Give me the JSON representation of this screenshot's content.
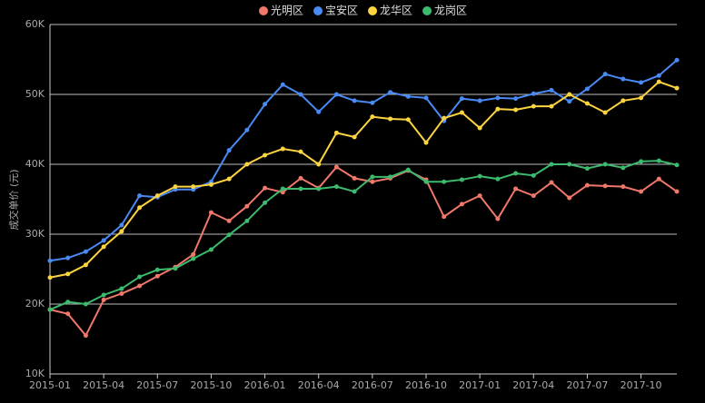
{
  "chart_data": {
    "type": "line",
    "y_label": "成交单价 (元)",
    "categories": [
      "2015-01",
      null,
      null,
      "2015-04",
      null,
      null,
      "2015-07",
      null,
      null,
      "2015-10",
      null,
      null,
      "2016-01",
      null,
      null,
      "2016-04",
      null,
      null,
      "2016-07",
      null,
      null,
      "2016-10",
      null,
      null,
      "2017-01",
      null,
      null,
      "2017-04",
      null,
      null,
      "2017-07",
      null,
      null,
      "2017-10",
      null,
      null
    ],
    "series": [
      {
        "name": "光明区",
        "color": "#f0786a",
        "values": [
          19200,
          18600,
          15500,
          20600,
          21500,
          22600,
          24000,
          25300,
          27100,
          33100,
          31900,
          34000,
          36600,
          36000,
          38000,
          36600,
          39600,
          38000,
          37500,
          38000,
          39100,
          37800,
          32500,
          34300,
          35500,
          32200,
          36500,
          35500,
          37400,
          35200,
          37000,
          36900,
          36800,
          36100,
          37900,
          36100
        ]
      },
      {
        "name": "宝安区",
        "color": "#4a8af4",
        "values": [
          26200,
          26600,
          27500,
          29100,
          31300,
          35500,
          35300,
          36400,
          36400,
          37500,
          42000,
          44900,
          48600,
          51400,
          50000,
          47500,
          50000,
          49100,
          48800,
          50300,
          49700,
          49500,
          46200,
          49400,
          49100,
          49500,
          49400,
          50100,
          50600,
          49000,
          50800,
          52900,
          52200,
          51700,
          52700,
          54900
        ]
      },
      {
        "name": "龙华区",
        "color": "#fcd440",
        "values": [
          23800,
          24300,
          25600,
          28200,
          30400,
          33800,
          35500,
          36800,
          36800,
          37100,
          37900,
          40000,
          41300,
          42200,
          41800,
          40000,
          44500,
          43900,
          46800,
          46500,
          46400,
          43100,
          46600,
          47400,
          45200,
          47900,
          47800,
          48300,
          48300,
          50000,
          48700,
          47400,
          49100,
          49500,
          51800,
          50900
        ]
      },
      {
        "name": "龙岗区",
        "color": "#3cba6e",
        "values": [
          19200,
          20300,
          20000,
          21300,
          22200,
          23900,
          24900,
          25100,
          26500,
          27800,
          29900,
          31900,
          34500,
          36500,
          36500,
          36500,
          36800,
          36100,
          38200,
          38200,
          39200,
          37500,
          37500,
          37800,
          38300,
          37900,
          38700,
          38400,
          40000,
          40000,
          39400,
          40000,
          39500,
          40400,
          40500,
          39900
        ]
      }
    ],
    "ylim": [
      10000,
      60000
    ],
    "yticks": [
      {
        "value": 10000,
        "label": "10K"
      },
      {
        "value": 20000,
        "label": "20K"
      },
      {
        "value": 30000,
        "label": "30K"
      },
      {
        "value": 40000,
        "label": "40K"
      },
      {
        "value": 50000,
        "label": "50K"
      },
      {
        "value": 60000,
        "label": "60K"
      }
    ],
    "grid": true
  }
}
